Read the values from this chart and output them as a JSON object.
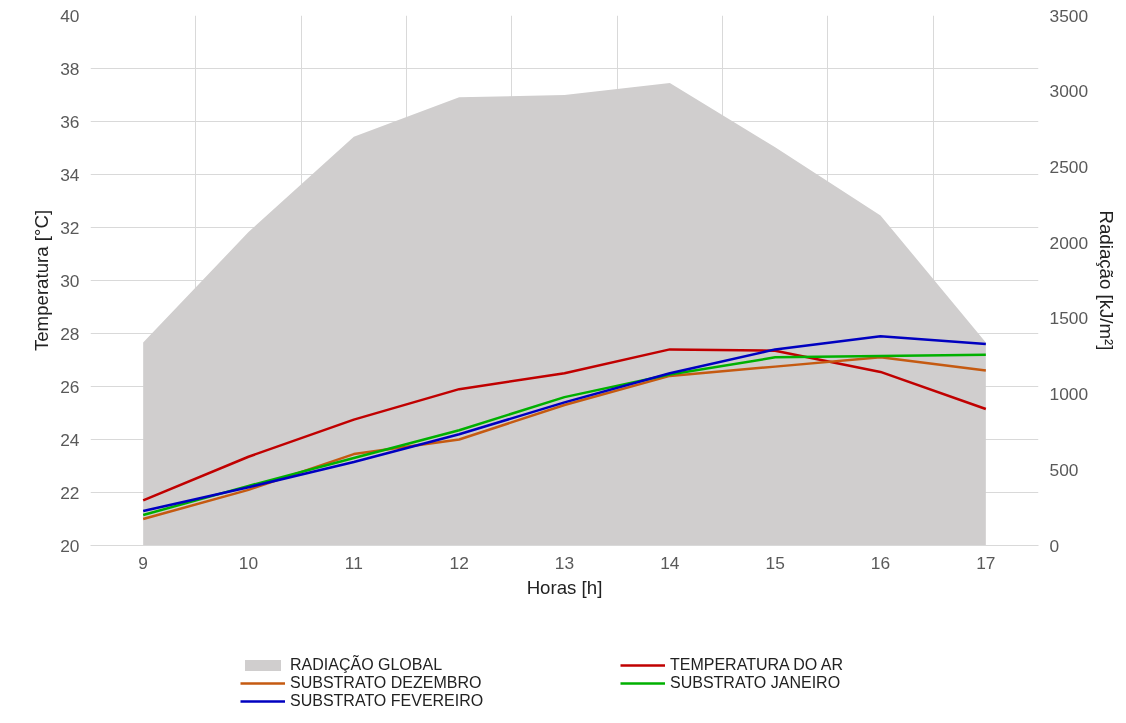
{
  "chart_data": {
    "type": "line",
    "xlabel": "Horas [h]",
    "ylabel": "Temperatura [°C]",
    "y2label": "Radiação [kJ/m²]",
    "x": [
      9,
      10,
      11,
      12,
      13,
      14,
      15,
      16,
      17
    ],
    "xlim": [
      8.5,
      17.5
    ],
    "xticks": [
      9,
      10,
      11,
      12,
      13,
      14,
      15,
      16,
      17
    ],
    "ylim": [
      20,
      40
    ],
    "yticks": [
      20,
      22,
      24,
      26,
      28,
      30,
      32,
      34,
      36,
      38,
      40
    ],
    "y2lim": [
      0,
      3500
    ],
    "y2ticks": [
      0,
      500,
      1000,
      1500,
      2000,
      2500,
      3000,
      3500
    ],
    "grid": true,
    "legend": "bottom",
    "line_style": "solid",
    "marker": "none",
    "series": [
      {
        "name": "RADIAÇÃO GLOBAL",
        "type": "area",
        "axis": "y2",
        "color": "#d0cece",
        "values": [
          1340,
          2070,
          2700,
          2960,
          2975,
          3055,
          2630,
          2180,
          1340
        ]
      },
      {
        "name": "TEMPERATURA DO AR",
        "color": "#c00000",
        "values": [
          21.7,
          23.35,
          24.75,
          25.9,
          26.5,
          27.4,
          27.35,
          26.55,
          25.15
        ]
      },
      {
        "name": "SUBSTRATO DEZEMBRO",
        "color": "#c55a11",
        "values": [
          21.0,
          22.1,
          23.45,
          24.0,
          25.3,
          26.4,
          26.75,
          27.1,
          26.6
        ]
      },
      {
        "name": "SUBSTRATO JANEIRO",
        "color": "#00b000",
        "values": [
          21.15,
          22.25,
          23.3,
          24.35,
          25.6,
          26.45,
          27.1,
          27.15,
          27.2
        ]
      },
      {
        "name": "SUBSTRATO FEVEREIRO",
        "color": "#0000c0",
        "values": [
          21.3,
          22.2,
          23.15,
          24.2,
          25.4,
          26.5,
          27.4,
          27.9,
          27.6
        ]
      }
    ]
  }
}
